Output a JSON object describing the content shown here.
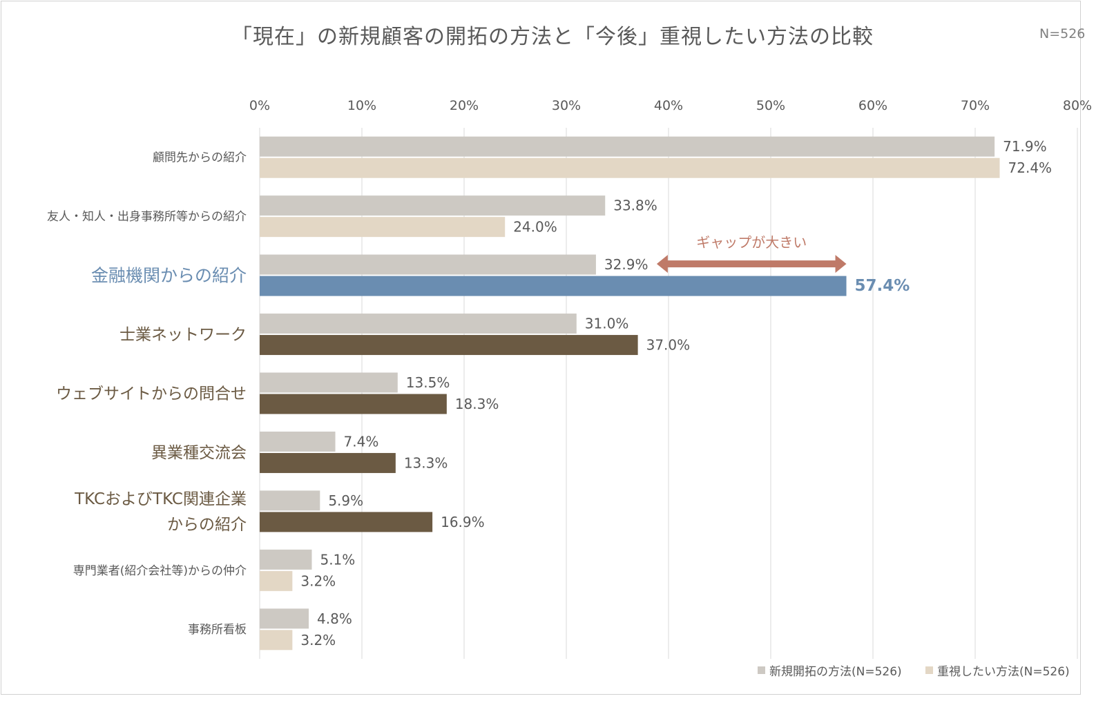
{
  "title": "「現在」の新規顧客の開拓の方法と「今後」重視したい方法の比較",
  "n_label": "N=526",
  "chart_data": {
    "type": "bar",
    "orientation": "horizontal",
    "title": "「現在」の新規顧客の開拓の方法と「今後」重視したい方法の比較",
    "xlim": [
      0,
      80
    ],
    "x_ticks": [
      "0%",
      "10%",
      "20%",
      "30%",
      "40%",
      "50%",
      "60%",
      "70%",
      "80%"
    ],
    "x_tick_values": [
      0,
      10,
      20,
      30,
      40,
      50,
      60,
      70,
      80
    ],
    "grid": true,
    "legend_position": "bottom-right",
    "categories": [
      "顧問先からの紹介",
      "友人・知人・出身事務所等からの紹介",
      "金融機関からの紹介",
      "士業ネットワーク",
      "ウェブサイトからの問合せ",
      "異業種交流会",
      "TKCおよびTKC関連企業からの紹介",
      "専門業者(紹介会社等)からの仲介",
      "事務所看板"
    ],
    "category_lines": [
      [
        "顧問先からの紹介"
      ],
      [
        "友人・知人・出身事務所等からの紹介"
      ],
      [
        "金融機関からの紹介"
      ],
      [
        "士業ネットワーク"
      ],
      [
        "ウェブサイトからの問合せ"
      ],
      [
        "異業種交流会"
      ],
      [
        "TKCおよびTKC関連企業",
        "からの紹介"
      ],
      [
        "専門業者(紹介会社等)からの仲介"
      ],
      [
        "事務所看板"
      ]
    ],
    "category_emphasis": [
      "normal",
      "normal",
      "blue",
      "brown",
      "brown",
      "brown",
      "brown",
      "normal",
      "normal"
    ],
    "series": [
      {
        "name": "新規開拓の方法(N=526)",
        "values": [
          71.9,
          33.8,
          32.9,
          31.0,
          13.5,
          7.4,
          5.9,
          5.1,
          4.8
        ],
        "labels": [
          "71.9%",
          "33.8%",
          "32.9%",
          "31.0%",
          "13.5%",
          "7.4%",
          "5.9%",
          "5.1%",
          "4.8%"
        ],
        "color": "#cdc9c3",
        "point_colors": [
          "#cdc9c3",
          "#cdc9c3",
          "#cdc9c3",
          "#cdc9c3",
          "#cdc9c3",
          "#cdc9c3",
          "#cdc9c3",
          "#cdc9c3",
          "#cdc9c3"
        ]
      },
      {
        "name": "重視したい方法(N=526)",
        "values": [
          72.4,
          24.0,
          57.4,
          37.0,
          18.3,
          13.3,
          16.9,
          3.2,
          3.2
        ],
        "labels": [
          "72.4%",
          "24.0%",
          "57.4%",
          "37.0%",
          "18.3%",
          "13.3%",
          "16.9%",
          "3.2%",
          "3.2%"
        ],
        "color": "#e3d7c5",
        "point_colors": [
          "#e3d7c5",
          "#e3d7c5",
          "#6a8db1",
          "#6b5a43",
          "#6b5a43",
          "#6b5a43",
          "#6b5a43",
          "#e3d7c5",
          "#e3d7c5"
        ]
      }
    ],
    "annotation": {
      "text": "ギャップが大きい",
      "from_value": 32.9,
      "to_value": 57.4,
      "category": "金融機関からの紹介",
      "color": "#bf7a68"
    }
  },
  "colors": {
    "grid": "#d9d9d9",
    "text": "#595959",
    "blue_emphasis": "#6a8db1",
    "brown_emphasis": "#6b5a43"
  }
}
